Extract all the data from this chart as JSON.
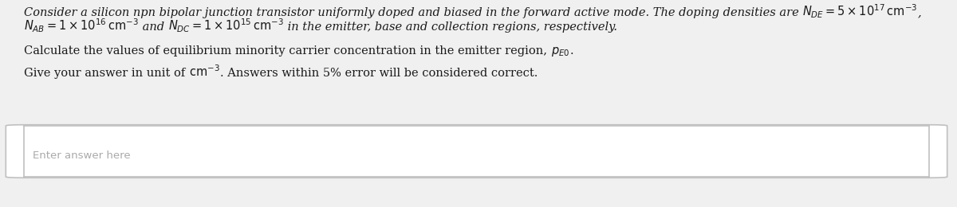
{
  "bg_color": "#f0f0f0",
  "text_color": "#1a1a1a",
  "placeholder_color": "#aaaaaa",
  "box_bg": "#ffffff",
  "box_border": "#c0c0c0",
  "placeholder": "Enter answer here",
  "fontsize": 10.5,
  "line1_text": "Consider a silicon npn bipolar junction transistor uniformly doped and biased in the forward active mode. The doping densities are ",
  "line1_math": "N_{DE} = 5 \\times 10^{17}\\,\\mathrm{cm}^{-3}",
  "line2_math1": "N_{AB} = 1 \\times 10^{16}\\,\\mathrm{cm}^{-3}",
  "line2_text2": " and ",
  "line2_math2": "N_{DC} = 1 \\times 10^{15}\\,\\mathrm{cm}^{-3}",
  "line2_text3": " in the emitter, base and collection regions, respectively.",
  "line3_text1": "Calculate the values of equilibrium minority carrier concentration in the emitter region, ",
  "line3_math": "p_{E0}",
  "line3_text2": ".",
  "line4_text1": "Give your answer in unit of ",
  "line4_math": "\\mathrm{cm}^{-3}",
  "line4_text2": ". Answers within 5% error will be considered correct."
}
